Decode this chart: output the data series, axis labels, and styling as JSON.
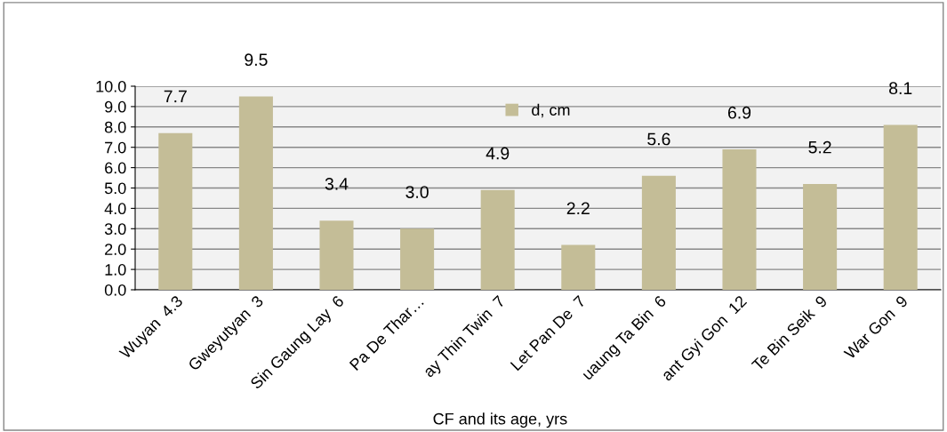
{
  "chart_data": {
    "type": "bar",
    "xlabel": "CF and its age, yrs",
    "categories": [
      "Wuyan  4.3",
      "Gweyutyan  3",
      "Sin Gaung Lay  6",
      "Pa De Thar…",
      "ay Thin Twin  7",
      "Let Pan De  7",
      "uaung Ta Bin  6",
      "ant Gyi Gon  12",
      "Te Bin Seik  9",
      "War Gon  9"
    ],
    "series": [
      {
        "name": "d, cm",
        "color": "#c4bd97",
        "values": [
          7.7,
          9.5,
          3.4,
          3.0,
          4.9,
          2.2,
          5.6,
          6.9,
          5.2,
          8.1
        ],
        "value_labels": [
          "7.7",
          "9.5",
          "3.4",
          "3.0",
          "4.9",
          "2.2",
          "5.6",
          "6.9",
          "5.2",
          "8.1"
        ]
      }
    ],
    "ylim": [
      0,
      10
    ],
    "yticks": [
      {
        "value": 0,
        "label": "0.0"
      },
      {
        "value": 1,
        "label": "1.0"
      },
      {
        "value": 2,
        "label": "2.0"
      },
      {
        "value": 3,
        "label": "3.0"
      },
      {
        "value": 4,
        "label": "4.0"
      },
      {
        "value": 5,
        "label": "5.0"
      },
      {
        "value": 6,
        "label": "6.0"
      },
      {
        "value": 7,
        "label": "7.0"
      },
      {
        "value": 8,
        "label": "8.0"
      },
      {
        "value": 9,
        "label": "9.0"
      },
      {
        "value": 10,
        "label": "10.0"
      }
    ],
    "grid": "y",
    "legend": "top"
  }
}
